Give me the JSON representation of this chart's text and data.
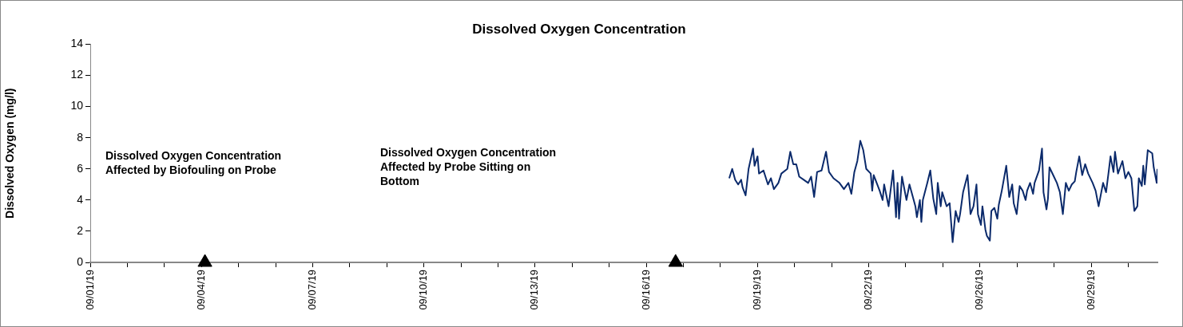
{
  "chart_data": {
    "type": "line",
    "title": "Dissolved Oxygen Concentration",
    "ylabel": "Dissolved Oxygen (mg/l)",
    "xlim": [
      "--09-01",
      "--09-30T20:30"
    ],
    "xticks": [
      {
        "value": "--09-01T00:00",
        "label": "09/01/19"
      },
      {
        "value": "--09-02T00:53",
        "label": null
      },
      {
        "value": "--09-03T01:47",
        "label": null
      },
      {
        "value": "--09-04T02:40",
        "label": "09/04/19"
      },
      {
        "value": "--09-05T03:33",
        "label": null
      },
      {
        "value": "--09-06T04:27",
        "label": null
      },
      {
        "value": "--09-07T05:20",
        "label": "09/07/19"
      },
      {
        "value": "--09-08T06:13",
        "label": null
      },
      {
        "value": "--09-09T07:07",
        "label": null
      },
      {
        "value": "--09-10T08:00",
        "label": "09/10/19"
      },
      {
        "value": "--09-11T08:53",
        "label": null
      },
      {
        "value": "--09-12T09:47",
        "label": null
      },
      {
        "value": "--09-13T10:40",
        "label": "09/13/19"
      },
      {
        "value": "--09-14T11:33",
        "label": null
      },
      {
        "value": "--09-15T12:27",
        "label": null
      },
      {
        "value": "--09-16T13:20",
        "label": "09/16/19"
      },
      {
        "value": "--09-17T14:13",
        "label": null
      },
      {
        "value": "--09-18T15:07",
        "label": null
      },
      {
        "value": "--09-19T16:00",
        "label": "09/19/19"
      },
      {
        "value": "--09-20T16:53",
        "label": null
      },
      {
        "value": "--09-21T17:47",
        "label": null
      },
      {
        "value": "--09-22T18:40",
        "label": "09/22/19"
      },
      {
        "value": "--09-23T19:33",
        "label": null
      },
      {
        "value": "--09-24T20:27",
        "label": null
      },
      {
        "value": "--09-25T21:20",
        "label": "09/26/19"
      },
      {
        "value": "--09-26T22:13",
        "label": null
      },
      {
        "value": "--09-27T23:07",
        "label": null
      },
      {
        "value": "--09-29T00:00",
        "label": "09/29/19"
      },
      {
        "value": "--09-30T00:53",
        "label": null
      }
    ],
    "ylim": [
      0,
      14
    ],
    "yticks": [
      0,
      2,
      4,
      6,
      8,
      10,
      12,
      14
    ],
    "grid": false,
    "legend": false,
    "annotations": [
      "Dissolved Oxygen Concentration Affected by Biofouling on Probe",
      "Dissolved Oxygen Concentration Affected by Probe Sitting on Bottom"
    ],
    "series": [
      {
        "type": "line",
        "color": "#0b2a6b",
        "marker": "none",
        "x": [
          "--09-18T21:00",
          "--09-18T23:00",
          "--09-19T01:00",
          "--09-19T03:00",
          "--09-19T05:00",
          "--09-19T06:00",
          "--09-19T08:00",
          "--09-19T10:00",
          "--09-19T13:00",
          "--09-19T14:00",
          "--09-19T16:00",
          "--09-19T17:00",
          "--09-19T20:00",
          "--09-19T23:00",
          "--09-20T01:00",
          "--09-20T03:00",
          "--09-20T06:00",
          "--09-20T08:00",
          "--09-20T12:00",
          "--09-20T14:00",
          "--09-20T16:00",
          "--09-20T18:00",
          "--09-20T20:00",
          "--09-20T23:00",
          "--09-21T02:00",
          "--09-21T04:00",
          "--09-21T06:00",
          "--09-21T08:00",
          "--09-21T11:00",
          "--09-21T14:00",
          "--09-21T16:00",
          "--09-21T19:00",
          "--09-21T23:00",
          "--09-22T02:00",
          "--09-22T05:00",
          "--09-22T07:00",
          "--09-22T09:00",
          "--09-22T11:00",
          "--09-22T13:00",
          "--09-22T15:00",
          "--09-22T17:00",
          "--09-22T20:00",
          "--09-22T21:00",
          "--09-22T22:00",
          "--09-23T02:00",
          "--09-23T04:00",
          "--09-23T05:00",
          "--09-23T08:00",
          "--09-23T11:00",
          "--09-23T13:00",
          "--09-23T14:00",
          "--09-23T15:00",
          "--09-23T17:00",
          "--09-23T20:00",
          "--09-23T22:00",
          "--09-24T02:00",
          "--09-24T03:00",
          "--09-24T05:00",
          "--09-24T06:00",
          "--09-24T07:00",
          "--09-24T10:00",
          "--09-24T12:00",
          "--09-24T14:00",
          "--09-24T16:00",
          "--09-24T17:00",
          "--09-24T19:00",
          "--09-24T20:00",
          "--09-24T23:00",
          "--09-25T01:00",
          "--09-25T03:00",
          "--09-25T05:00",
          "--09-25T07:00",
          "--09-25T08:00",
          "--09-25T10:00",
          "--09-25T13:00",
          "--09-25T15:00",
          "--09-25T17:00",
          "--09-25T19:00",
          "--09-25T20:00",
          "--09-25T22:00",
          "--09-25T23:00",
          "--09-26T01:00",
          "--09-26T02:00",
          "--09-26T04:00",
          "--09-26T05:00",
          "--09-26T07:00",
          "--09-26T09:00",
          "--09-26T10:00",
          "--09-26T12:00",
          "--09-26T15:00",
          "--09-26T17:00",
          "--09-26T19:00",
          "--09-26T20:00",
          "--09-26T22:00",
          "--09-27T00:00",
          "--09-27T02:00",
          "--09-27T04:00",
          "--09-27T05:00",
          "--09-27T07:00",
          "--09-27T09:00",
          "--09-27T10:00",
          "--09-27T13:00",
          "--09-27T15:00",
          "--09-27T16:00",
          "--09-27T18:00",
          "--09-27T19:00",
          "--09-27T20:00",
          "--09-27T23:00",
          "--09-28T01:00",
          "--09-28T03:00",
          "--09-28T05:00",
          "--09-28T07:00",
          "--09-28T09:00",
          "--09-28T11:00",
          "--09-28T13:00",
          "--09-28T14:00",
          "--09-28T16:00",
          "--09-28T18:00",
          "--09-28T20:00",
          "--09-28T22:00",
          "--09-29T01:00",
          "--09-29T03:00",
          "--09-29T05:00",
          "--09-29T08:00",
          "--09-29T10:00",
          "--09-29T12:00",
          "--09-29T13:00",
          "--09-29T15:00",
          "--09-29T16:00",
          "--09-29T18:00",
          "--09-29T21:00",
          "--09-29T23:00",
          "--09-30T01:00",
          "--09-30T03:00",
          "--09-30T05:00",
          "--09-30T07:00",
          "--09-30T08:00",
          "--09-30T10:00",
          "--09-30T11:00",
          "--09-30T12:00",
          "--09-30T14:00",
          "--09-30T17:00",
          "--09-30T18:00",
          "--09-30T20:00",
          "--09-30T20:30"
        ],
        "values": [
          5.4,
          6.0,
          5.3,
          5.0,
          5.3,
          4.8,
          4.3,
          6.0,
          7.3,
          6.2,
          6.8,
          5.7,
          5.9,
          5.0,
          5.4,
          4.7,
          5.1,
          5.7,
          6.0,
          7.1,
          6.3,
          6.3,
          5.5,
          5.3,
          5.1,
          5.5,
          4.2,
          5.8,
          5.9,
          7.1,
          5.8,
          5.4,
          5.1,
          4.7,
          5.1,
          4.4,
          5.8,
          6.5,
          7.8,
          7.2,
          6.0,
          5.7,
          4.6,
          5.6,
          4.6,
          4.0,
          5.0,
          3.6,
          5.9,
          2.9,
          5.1,
          2.8,
          5.5,
          4.0,
          5.0,
          3.6,
          2.9,
          4.0,
          2.6,
          4.0,
          5.1,
          5.9,
          4.1,
          3.1,
          5.1,
          3.6,
          4.5,
          3.6,
          3.8,
          1.3,
          3.3,
          2.6,
          3.1,
          4.5,
          5.6,
          3.1,
          3.6,
          5.0,
          3.1,
          2.4,
          3.6,
          2.1,
          1.7,
          1.4,
          3.3,
          3.5,
          2.8,
          3.7,
          4.6,
          6.2,
          4.2,
          5.0,
          3.8,
          3.1,
          4.9,
          4.6,
          4.0,
          4.6,
          5.1,
          4.4,
          5.1,
          5.9,
          7.3,
          4.5,
          3.4,
          4.1,
          6.1,
          5.5,
          5.1,
          4.5,
          3.1,
          5.1,
          4.6,
          5.0,
          5.2,
          5.8,
          6.8,
          5.6,
          6.3,
          5.7,
          5.1,
          4.6,
          3.6,
          5.1,
          4.5,
          6.0,
          6.8,
          5.8,
          7.1,
          5.7,
          6.5,
          5.4,
          5.8,
          5.4,
          3.3,
          3.6,
          5.4,
          4.9,
          6.2,
          5.0,
          7.2,
          7.0,
          6.1,
          5.1,
          6.0
        ]
      },
      {
        "type": "scatter",
        "color": "#000000",
        "marker": "triangle",
        "x": [
          "--09-04T05:00",
          "--09-17T09:00"
        ],
        "values": [
          0,
          0
        ]
      }
    ]
  }
}
